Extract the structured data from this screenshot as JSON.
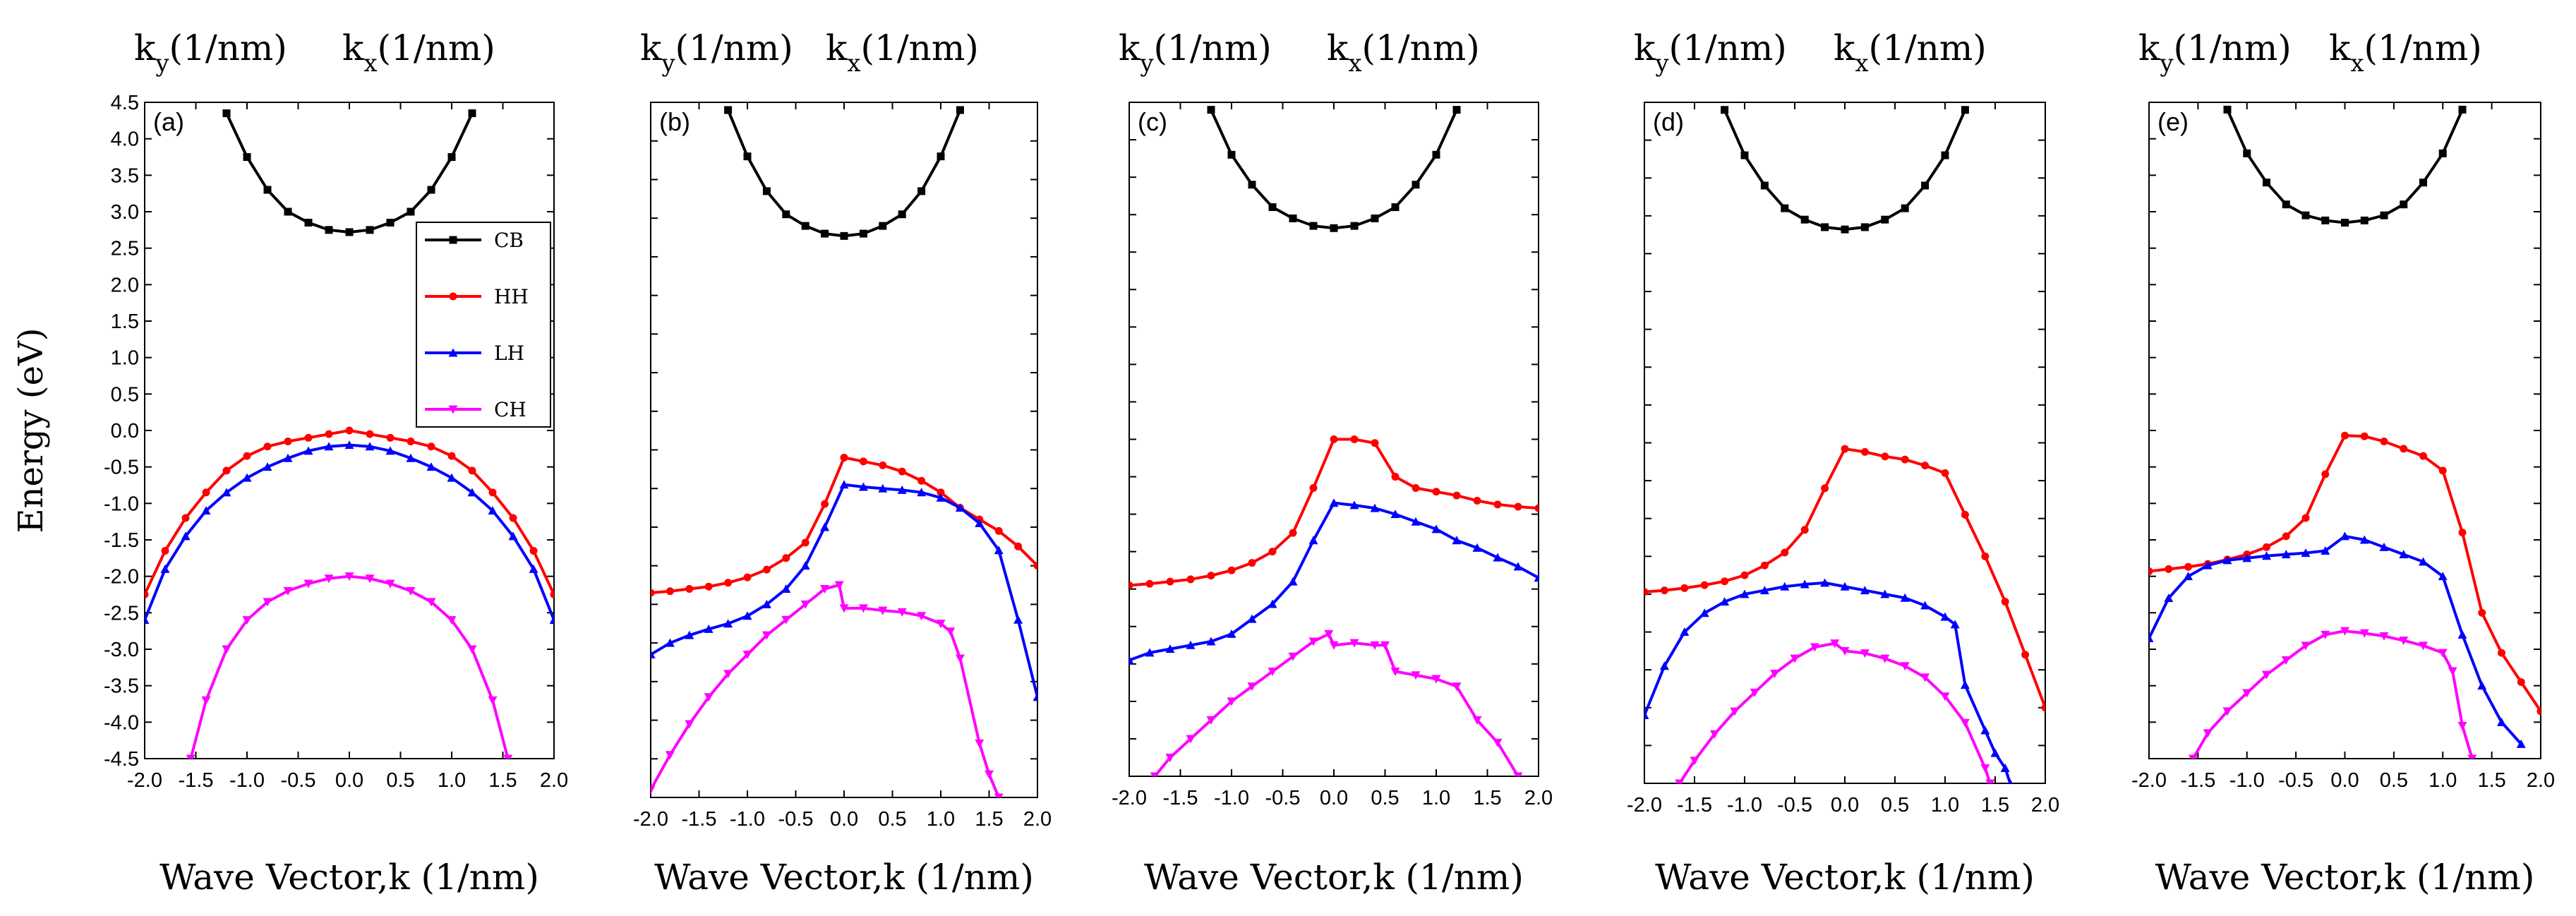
{
  "colors": {
    "CB": "#000000",
    "HH": "#ff0000",
    "LH": "#0000ff",
    "CH": "#ff00ff"
  },
  "chart_data": [
    {
      "type": "line",
      "panel_label": "(a)",
      "top_left_label": "k",
      "top_left_sub": "y",
      "top_left_unit": "(1/nm)",
      "top_right_label": "k",
      "top_right_sub": "x",
      "top_right_unit": "(1/nm)",
      "xlabel": "Wave Vector,k (1/nm)",
      "ylabel": "Energy (eV)",
      "xlim": [
        -2.0,
        2.0
      ],
      "ylim": [
        -4.5,
        4.5
      ],
      "xticks": [
        "-2.0",
        "-1.5",
        "-1.0",
        "-0.5",
        "0.0",
        "0.5",
        "1.0",
        "1.5",
        "2.0"
      ],
      "yticks": [
        "4.5",
        "4.0",
        "3.5",
        "3.0",
        "2.5",
        "2.0",
        "1.5",
        "1.0",
        "0.5",
        "0.0",
        "-0.5",
        "-1.0",
        "-1.5",
        "-2.0",
        "-2.5",
        "-3.0",
        "-3.5",
        "-4.0",
        "-4.5"
      ],
      "legend": [
        "CB",
        "HH",
        "LH",
        "CH"
      ],
      "series": [
        {
          "name": "CB",
          "x": [
            -1.2,
            -1.0,
            -0.8,
            -0.6,
            -0.4,
            -0.2,
            0.0,
            0.2,
            0.4,
            0.6,
            0.8,
            1.0,
            1.2
          ],
          "y": [
            4.35,
            3.75,
            3.3,
            3.0,
            2.85,
            2.75,
            2.72,
            2.75,
            2.85,
            3.0,
            3.3,
            3.75,
            4.35
          ]
        },
        {
          "name": "HH",
          "x": [
            -2.0,
            -1.8,
            -1.6,
            -1.4,
            -1.2,
            -1.0,
            -0.8,
            -0.6,
            -0.4,
            -0.2,
            0.0,
            0.2,
            0.4,
            0.6,
            0.8,
            1.0,
            1.2,
            1.4,
            1.6,
            1.8,
            2.0
          ],
          "y": [
            -2.25,
            -1.65,
            -1.2,
            -0.85,
            -0.55,
            -0.35,
            -0.22,
            -0.15,
            -0.1,
            -0.05,
            0.0,
            -0.05,
            -0.1,
            -0.15,
            -0.22,
            -0.35,
            -0.55,
            -0.85,
            -1.2,
            -1.65,
            -2.25
          ]
        },
        {
          "name": "LH",
          "x": [
            -2.0,
            -1.8,
            -1.6,
            -1.4,
            -1.2,
            -1.0,
            -0.8,
            -0.6,
            -0.4,
            -0.2,
            0.0,
            0.2,
            0.4,
            0.6,
            0.8,
            1.0,
            1.2,
            1.4,
            1.6,
            1.8,
            2.0
          ],
          "y": [
            -2.6,
            -1.9,
            -1.45,
            -1.1,
            -0.85,
            -0.65,
            -0.5,
            -0.38,
            -0.28,
            -0.22,
            -0.2,
            -0.22,
            -0.28,
            -0.38,
            -0.5,
            -0.65,
            -0.85,
            -1.1,
            -1.45,
            -1.9,
            -2.6
          ]
        },
        {
          "name": "CH",
          "x": [
            -1.55,
            -1.4,
            -1.2,
            -1.0,
            -0.8,
            -0.6,
            -0.4,
            -0.2,
            0.0,
            0.2,
            0.4,
            0.6,
            0.8,
            1.0,
            1.2,
            1.4,
            1.55
          ],
          "y": [
            -4.5,
            -3.7,
            -3.0,
            -2.6,
            -2.35,
            -2.2,
            -2.1,
            -2.03,
            -2.0,
            -2.03,
            -2.1,
            -2.2,
            -2.35,
            -2.6,
            -3.0,
            -3.7,
            -4.5
          ]
        }
      ]
    },
    {
      "type": "line",
      "panel_label": "(b)",
      "top_left_label": "k",
      "top_left_sub": "y",
      "top_left_unit": "(1/nm)",
      "top_right_label": "k",
      "top_right_sub": "x",
      "top_right_unit": "(1/nm)",
      "xlabel": "Wave Vector,k (1/nm)",
      "xlim": [
        -2.0,
        2.0
      ],
      "ylim": [
        -4.5,
        4.5
      ],
      "xticks": [
        "-2.0",
        "-1.5",
        "-1.0",
        "-0.5",
        "0.0",
        "0.5",
        "1.0",
        "1.5",
        "2.0"
      ],
      "series": [
        {
          "name": "CB",
          "x": [
            -1.2,
            -1.0,
            -0.8,
            -0.6,
            -0.4,
            -0.2,
            0.0,
            0.2,
            0.4,
            0.6,
            0.8,
            1.0,
            1.2
          ],
          "y": [
            4.4,
            3.8,
            3.35,
            3.05,
            2.9,
            2.8,
            2.77,
            2.8,
            2.9,
            3.05,
            3.35,
            3.8,
            4.4
          ]
        },
        {
          "name": "HH",
          "x": [
            -2.0,
            -1.8,
            -1.6,
            -1.4,
            -1.2,
            -1.0,
            -0.8,
            -0.6,
            -0.4,
            -0.2,
            0.0,
            0.2,
            0.4,
            0.6,
            0.8,
            1.0,
            1.2,
            1.4,
            1.6,
            1.8,
            2.0
          ],
          "y": [
            -1.85,
            -1.83,
            -1.8,
            -1.77,
            -1.72,
            -1.65,
            -1.55,
            -1.4,
            -1.2,
            -0.7,
            -0.1,
            -0.15,
            -0.2,
            -0.28,
            -0.4,
            -0.55,
            -0.75,
            -0.9,
            -1.05,
            -1.25,
            -1.5
          ]
        },
        {
          "name": "LH",
          "x": [
            -2.0,
            -1.8,
            -1.6,
            -1.4,
            -1.2,
            -1.0,
            -0.8,
            -0.6,
            -0.4,
            -0.2,
            0.0,
            0.2,
            0.4,
            0.6,
            0.8,
            1.0,
            1.2,
            1.4,
            1.6,
            1.8,
            2.0
          ],
          "y": [
            -2.65,
            -2.5,
            -2.4,
            -2.32,
            -2.25,
            -2.15,
            -2.0,
            -1.8,
            -1.5,
            -1.0,
            -0.45,
            -0.48,
            -0.5,
            -0.52,
            -0.55,
            -0.62,
            -0.75,
            -0.95,
            -1.3,
            -2.2,
            -3.2
          ]
        },
        {
          "name": "CH",
          "x": [
            -2.0,
            -1.8,
            -1.6,
            -1.4,
            -1.2,
            -1.0,
            -0.8,
            -0.6,
            -0.4,
            -0.2,
            -0.05,
            0.0,
            0.2,
            0.4,
            0.6,
            0.8,
            1.0,
            1.1,
            1.2,
            1.4,
            1.5,
            1.6
          ],
          "y": [
            -4.4,
            -3.95,
            -3.55,
            -3.2,
            -2.9,
            -2.65,
            -2.4,
            -2.2,
            -2.0,
            -1.8,
            -1.75,
            -2.05,
            -2.05,
            -2.08,
            -2.1,
            -2.15,
            -2.25,
            -2.35,
            -2.7,
            -3.8,
            -4.2,
            -4.5
          ]
        }
      ]
    },
    {
      "type": "line",
      "panel_label": "(c)",
      "top_left_label": "k",
      "top_left_sub": "y",
      "top_left_unit": "(1/nm)",
      "top_right_label": "k",
      "top_right_sub": "x",
      "top_right_unit": "(1/nm)",
      "xlabel": "Wave Vector,k (1/nm)",
      "xlim": [
        -2.0,
        2.0
      ],
      "ylim": [
        -4.5,
        4.5
      ],
      "xticks": [
        "-2.0",
        "-1.5",
        "-1.0",
        "-0.5",
        "0.0",
        "0.5",
        "1.0",
        "1.5",
        "2.0"
      ],
      "series": [
        {
          "name": "CB",
          "x": [
            -1.2,
            -1.0,
            -0.8,
            -0.6,
            -0.4,
            -0.2,
            0.0,
            0.2,
            0.4,
            0.6,
            0.8,
            1.0,
            1.2
          ],
          "y": [
            4.4,
            3.8,
            3.4,
            3.1,
            2.95,
            2.85,
            2.82,
            2.85,
            2.95,
            3.1,
            3.4,
            3.8,
            4.4
          ]
        },
        {
          "name": "HH",
          "x": [
            -2.0,
            -1.8,
            -1.6,
            -1.4,
            -1.2,
            -1.0,
            -0.8,
            -0.6,
            -0.4,
            -0.2,
            0.0,
            0.2,
            0.4,
            0.6,
            0.8,
            1.0,
            1.2,
            1.4,
            1.6,
            1.8,
            2.0
          ],
          "y": [
            -1.95,
            -1.93,
            -1.9,
            -1.87,
            -1.82,
            -1.75,
            -1.65,
            -1.5,
            -1.25,
            -0.65,
            0.0,
            0.0,
            -0.05,
            -0.5,
            -0.65,
            -0.7,
            -0.75,
            -0.82,
            -0.87,
            -0.9,
            -0.92
          ]
        },
        {
          "name": "LH",
          "x": [
            -2.0,
            -1.8,
            -1.6,
            -1.4,
            -1.2,
            -1.0,
            -0.8,
            -0.6,
            -0.4,
            -0.2,
            0.0,
            0.2,
            0.4,
            0.6,
            0.8,
            1.0,
            1.2,
            1.4,
            1.6,
            1.8,
            2.0
          ],
          "y": [
            -2.95,
            -2.85,
            -2.8,
            -2.75,
            -2.7,
            -2.6,
            -2.4,
            -2.2,
            -1.9,
            -1.35,
            -0.85,
            -0.88,
            -0.92,
            -1.0,
            -1.1,
            -1.2,
            -1.35,
            -1.45,
            -1.58,
            -1.7,
            -1.85
          ]
        },
        {
          "name": "CH",
          "x": [
            -1.75,
            -1.6,
            -1.4,
            -1.2,
            -1.0,
            -0.8,
            -0.6,
            -0.4,
            -0.2,
            -0.05,
            0.0,
            0.2,
            0.4,
            0.5,
            0.6,
            0.8,
            1.0,
            1.2,
            1.4,
            1.6,
            1.8
          ],
          "y": [
            -4.5,
            -4.25,
            -4.0,
            -3.75,
            -3.5,
            -3.3,
            -3.1,
            -2.9,
            -2.7,
            -2.6,
            -2.75,
            -2.72,
            -2.75,
            -2.75,
            -3.1,
            -3.15,
            -3.2,
            -3.3,
            -3.75,
            -4.05,
            -4.5
          ]
        }
      ]
    },
    {
      "type": "line",
      "panel_label": "(d)",
      "top_left_label": "k",
      "top_left_sub": "y",
      "top_left_unit": "(1/nm)",
      "top_right_label": "k",
      "top_right_sub": "x",
      "top_right_unit": "(1/nm)",
      "xlabel": "Wave Vector,k (1/nm)",
      "xlim": [
        -2.0,
        2.0
      ],
      "ylim": [
        -4.5,
        4.5
      ],
      "xticks": [
        "-2.0",
        "-1.5",
        "-1.0",
        "-0.5",
        "0.0",
        "0.5",
        "1.0",
        "1.5",
        "2.0"
      ],
      "series": [
        {
          "name": "CB",
          "x": [
            -1.2,
            -1.0,
            -0.8,
            -0.6,
            -0.4,
            -0.2,
            0.0,
            0.2,
            0.4,
            0.6,
            0.8,
            1.0,
            1.2
          ],
          "y": [
            4.4,
            3.8,
            3.4,
            3.1,
            2.95,
            2.85,
            2.82,
            2.85,
            2.95,
            3.1,
            3.4,
            3.8,
            4.4
          ]
        },
        {
          "name": "HH",
          "x": [
            -2.0,
            -1.8,
            -1.6,
            -1.4,
            -1.2,
            -1.0,
            -0.8,
            -0.6,
            -0.4,
            -0.2,
            0.0,
            0.2,
            0.4,
            0.6,
            0.8,
            1.0,
            1.2,
            1.4,
            1.6,
            1.8,
            2.0
          ],
          "y": [
            -1.97,
            -1.95,
            -1.92,
            -1.88,
            -1.83,
            -1.75,
            -1.62,
            -1.45,
            -1.15,
            -0.6,
            -0.08,
            -0.12,
            -0.18,
            -0.22,
            -0.3,
            -0.4,
            -0.95,
            -1.5,
            -2.1,
            -2.8,
            -3.5
          ]
        },
        {
          "name": "LH",
          "x": [
            -2.0,
            -1.8,
            -1.6,
            -1.4,
            -1.2,
            -1.0,
            -0.8,
            -0.6,
            -0.4,
            -0.2,
            0.0,
            0.2,
            0.4,
            0.6,
            0.8,
            1.0,
            1.1,
            1.2,
            1.4,
            1.5,
            1.6,
            1.65
          ],
          "y": [
            -3.6,
            -2.95,
            -2.5,
            -2.25,
            -2.1,
            -2.0,
            -1.95,
            -1.9,
            -1.87,
            -1.85,
            -1.9,
            -1.95,
            -2.0,
            -2.05,
            -2.15,
            -2.3,
            -2.4,
            -3.2,
            -3.8,
            -4.1,
            -4.3,
            -4.5
          ]
        },
        {
          "name": "CH",
          "x": [
            -1.65,
            -1.5,
            -1.3,
            -1.1,
            -0.9,
            -0.7,
            -0.5,
            -0.3,
            -0.1,
            0.0,
            0.2,
            0.4,
            0.6,
            0.8,
            1.0,
            1.2,
            1.4,
            1.45
          ],
          "y": [
            -4.5,
            -4.2,
            -3.85,
            -3.55,
            -3.3,
            -3.05,
            -2.85,
            -2.7,
            -2.65,
            -2.75,
            -2.78,
            -2.85,
            -2.95,
            -3.1,
            -3.35,
            -3.7,
            -4.3,
            -4.5
          ]
        }
      ]
    },
    {
      "type": "line",
      "panel_label": "(e)",
      "top_left_label": "k",
      "top_left_sub": "y",
      "top_left_unit": "(1/nm)",
      "top_right_label": "k",
      "top_right_sub": "x",
      "top_right_unit": "(1/nm)",
      "xlabel": "Wave Vector,k (1/nm)",
      "xlim": [
        -2.0,
        2.0
      ],
      "ylim": [
        -4.5,
        4.5
      ],
      "xticks": [
        "-2.0",
        "-1.5",
        "-1.0",
        "-0.5",
        "0.0",
        "0.5",
        "1.0",
        "1.5",
        "2.0"
      ],
      "series": [
        {
          "name": "CB",
          "x": [
            -1.2,
            -1.0,
            -0.8,
            -0.6,
            -0.4,
            -0.2,
            0.0,
            0.2,
            0.4,
            0.6,
            0.8,
            1.0,
            1.2
          ],
          "y": [
            4.4,
            3.8,
            3.4,
            3.1,
            2.95,
            2.88,
            2.85,
            2.88,
            2.95,
            3.1,
            3.4,
            3.8,
            4.4
          ]
        },
        {
          "name": "HH",
          "x": [
            -2.0,
            -1.8,
            -1.6,
            -1.4,
            -1.2,
            -1.0,
            -0.8,
            -0.6,
            -0.4,
            -0.2,
            0.0,
            0.2,
            0.4,
            0.6,
            0.8,
            1.0,
            1.2,
            1.4,
            1.6,
            1.8,
            2.0
          ],
          "y": [
            -1.93,
            -1.9,
            -1.87,
            -1.83,
            -1.77,
            -1.7,
            -1.6,
            -1.45,
            -1.2,
            -0.6,
            -0.07,
            -0.08,
            -0.15,
            -0.25,
            -0.35,
            -0.55,
            -1.4,
            -2.5,
            -3.05,
            -3.45,
            -3.85
          ]
        },
        {
          "name": "LH",
          "x": [
            -2.0,
            -1.8,
            -1.6,
            -1.4,
            -1.2,
            -1.0,
            -0.8,
            -0.6,
            -0.4,
            -0.2,
            0.0,
            0.2,
            0.4,
            0.6,
            0.8,
            1.0,
            1.2,
            1.4,
            1.6,
            1.8
          ],
          "y": [
            -2.85,
            -2.3,
            -2.0,
            -1.85,
            -1.78,
            -1.75,
            -1.72,
            -1.7,
            -1.68,
            -1.65,
            -1.45,
            -1.5,
            -1.6,
            -1.7,
            -1.8,
            -2.0,
            -2.8,
            -3.5,
            -4.0,
            -4.3
          ]
        },
        {
          "name": "CH",
          "x": [
            -1.55,
            -1.4,
            -1.2,
            -1.0,
            -0.8,
            -0.6,
            -0.4,
            -0.2,
            0.0,
            0.2,
            0.4,
            0.6,
            0.8,
            1.0,
            1.1,
            1.2,
            1.3
          ],
          "y": [
            -4.5,
            -4.15,
            -3.85,
            -3.6,
            -3.35,
            -3.15,
            -2.95,
            -2.8,
            -2.75,
            -2.78,
            -2.82,
            -2.88,
            -2.95,
            -3.05,
            -3.3,
            -4.05,
            -4.5
          ]
        }
      ]
    }
  ]
}
